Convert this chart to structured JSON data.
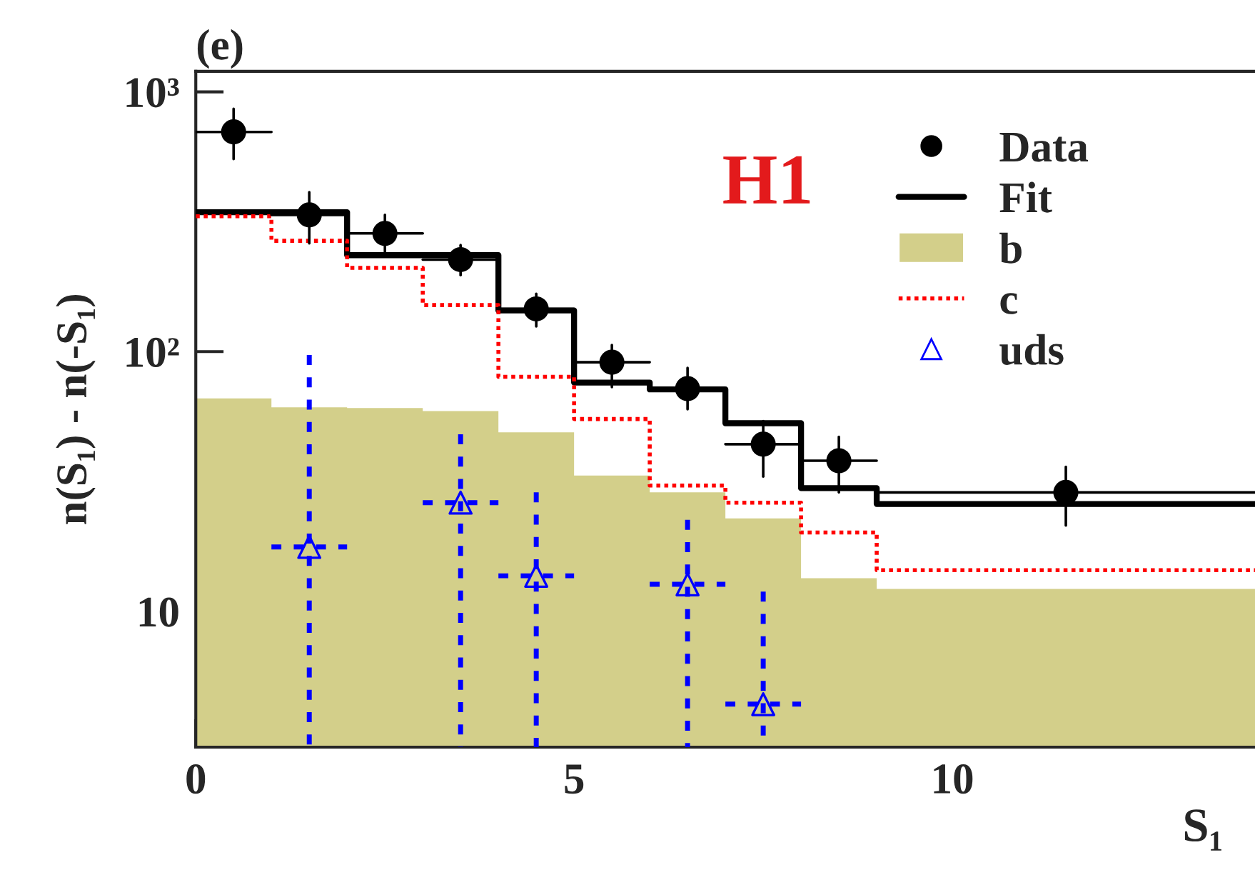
{
  "chart_data": {
    "type": "scatter",
    "title": "(e)",
    "xlabel": "S₁",
    "ylabel": "n(S₁) - n(-S₁)",
    "annotations": [
      "H1"
    ],
    "log": "y",
    "xlim": [
      0,
      14
    ],
    "xticks": [
      0,
      5,
      10
    ],
    "ylim": [
      3,
      1200
    ],
    "yticks": [
      {
        "value": 10,
        "label": "10"
      },
      {
        "value": 100,
        "label": "10²"
      },
      {
        "value": 1000,
        "label": "10³"
      }
    ],
    "grid": false,
    "legend": "top right",
    "series": [
      {
        "name": "Data",
        "color": "#000000",
        "marker": "circle",
        "line_style": "solid",
        "x": [
          0.5,
          1.5,
          2.5,
          3.5,
          4.5,
          5.5,
          6.5,
          7.5,
          8.5,
          11.5
        ],
        "values": [
          701,
          336,
          285,
          226,
          146,
          91,
          72,
          44,
          38,
          28.7
        ],
        "errors": [
          [
            551,
            860
          ],
          [
            261,
            411
          ],
          [
            238,
            336
          ],
          [
            197,
            257
          ],
          [
            125,
            167
          ],
          [
            73,
            106
          ],
          [
            60,
            86.5
          ],
          [
            33,
            54
          ],
          [
            28.7,
            47
          ],
          [
            21.4,
            36
          ]
        ],
        "xerrors": [
          [
            0,
            1
          ],
          [
            1,
            2
          ],
          [
            2,
            3
          ],
          [
            3,
            4
          ],
          [
            4,
            5
          ],
          [
            5,
            6
          ],
          [
            6,
            7
          ],
          [
            7,
            8
          ],
          [
            8,
            9
          ],
          [
            9,
            14
          ]
        ]
      },
      {
        "name": "Fit",
        "type": "step",
        "color": "#000000",
        "line_style": "solid",
        "x": [
          0,
          2,
          4,
          5,
          6,
          7,
          8,
          9,
          14
        ],
        "values": [
          344,
          235,
          144,
          76,
          71.5,
          53,
          29.8,
          25.9,
          25.9
        ]
      },
      {
        "name": "b",
        "type": "histogram",
        "color": "#d3cf8a",
        "bins": [
          0,
          1,
          2,
          3,
          4,
          5,
          6,
          7,
          8,
          9,
          14
        ],
        "values": [
          66,
          61,
          60.6,
          59,
          48.9,
          33.3,
          28.7,
          22.8,
          13.4,
          12.2
        ]
      },
      {
        "name": "c",
        "type": "step",
        "color": "#ff0000",
        "line_style": "dotted",
        "x": [
          0,
          1,
          2,
          3,
          4,
          5,
          6,
          7,
          8,
          9,
          14
        ],
        "values": [
          332,
          267,
          210,
          151,
          80,
          55,
          30.5,
          26.2,
          20.1,
          14.4,
          14.4
        ]
      },
      {
        "name": "uds",
        "color": "#0000ff",
        "marker": "triangle",
        "line_style": "dashed",
        "x": [
          1.5,
          3.5,
          4.5,
          6.5,
          7.5
        ],
        "values": [
          17.7,
          26.2,
          13.7,
          12.7,
          4.39
        ],
        "errors": [
          [
            3,
            97
          ],
          [
            3,
            48
          ],
          [
            3,
            28.7
          ],
          [
            3,
            22.5
          ],
          [
            3,
            11.9
          ]
        ],
        "xerrors": [
          [
            1,
            2
          ],
          [
            3,
            4
          ],
          [
            4,
            5
          ],
          [
            6,
            7
          ],
          [
            7,
            8
          ]
        ]
      }
    ]
  }
}
